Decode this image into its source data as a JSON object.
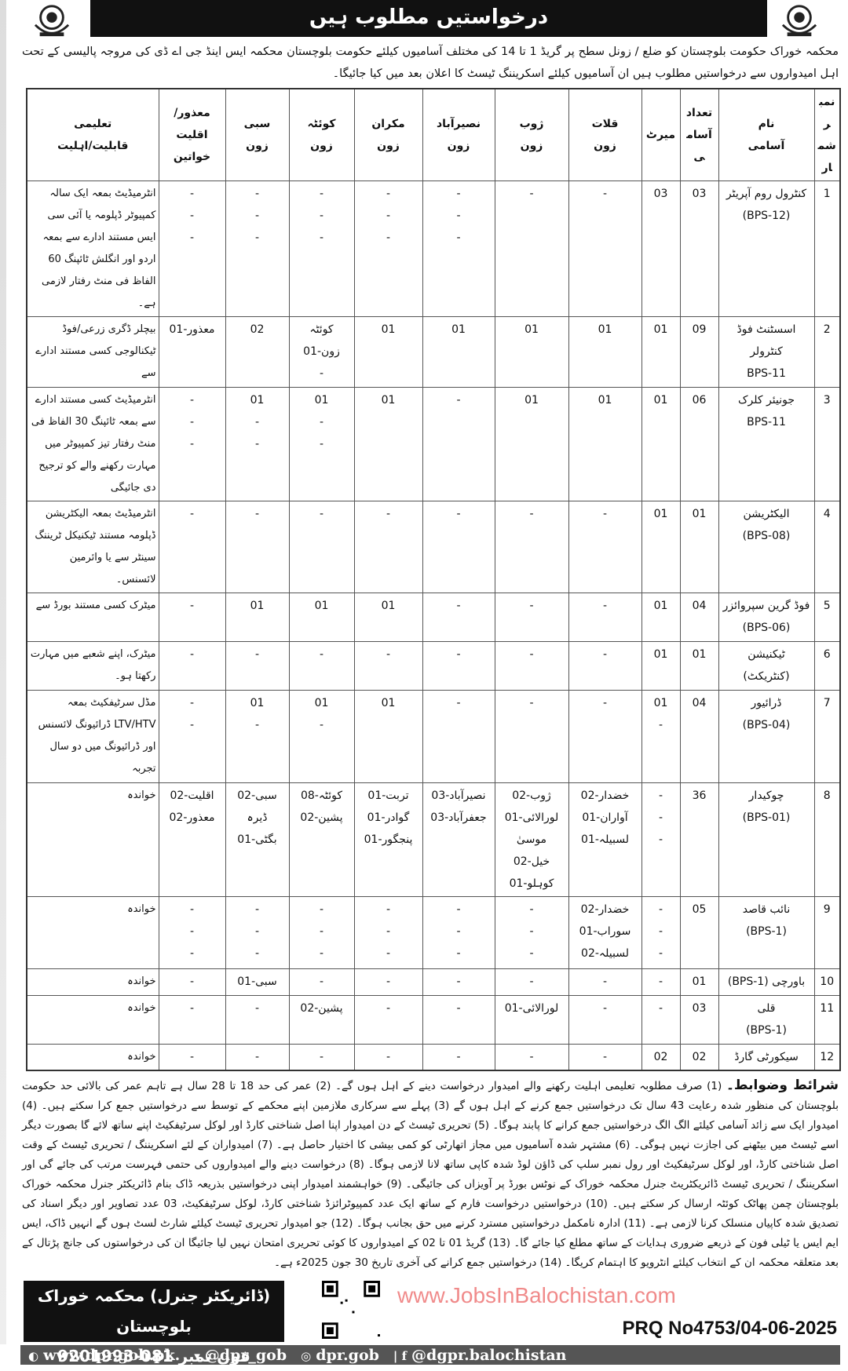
{
  "header": {
    "title": "درخواستیں مطلوب ہیں"
  },
  "intro": "محکمہ خوراک حکومت بلوچستان کو ضلع / زونل سطح پر گریڈ 1 تا 14 کی مختلف آسامیوں کیلئے حکومت بلوچستان محکمہ ایس اینڈ جی اے ڈی کی مروجہ پالیسی کے تحت اہل امیدواروں سے درخواستیں مطلوب ہیں ان آسامیوں کیلئے اسکریننگ ٹیسٹ کا اعلان بعد میں کیا جائیگا۔",
  "table": {
    "columns": [
      "نمبر\nشمار",
      "نام\nآسامی",
      "تعداد\nآسامی",
      "میرٹ",
      "قلات\nزون",
      "ژوب\nزون",
      "نصیرآباد\nزون",
      "مکران\nزون",
      "کوئٹہ\nزون",
      "سبی\nزون",
      "معذور/اقلیت\nخواتین",
      "تعلیمی\nقابلیت/اہلیت"
    ],
    "rows": [
      [
        "1",
        "کنٹرول روم آپریٹر\n(BPS-12)",
        "03",
        "03",
        "-",
        "-",
        "-\n-\n-",
        "-\n-\n-",
        "-\n-\n-",
        "-\n-\n-",
        "-\n-\n-",
        "انٹرمیڈیٹ بمعہ ایک سالہ کمپیوٹر ڈپلومہ یا آئی سی ایس مستند ادارے سے بمعہ اردو اور انگلش ٹائپنگ 60 الفاظ فی منٹ رفتار لازمی ہے۔"
      ],
      [
        "2",
        "اسسٹنٹ فوڈ کنٹرولر\nBPS-11",
        "09",
        "01",
        "01",
        "01",
        "01",
        "01",
        "کوئٹہ\nزون-01\n-",
        "02",
        "معذور-01",
        "بیچلر ڈگری زرعی/فوڈ ٹیکنالوجی کسی مستند ادارے سے"
      ],
      [
        "3",
        "جونیئر کلرک\nBPS-11",
        "06",
        "01",
        "01",
        "01",
        "-",
        "01",
        "01\n-\n-",
        "01\n-\n-",
        "-\n-\n-",
        "انٹرمیڈیٹ کسی مستند ادارے سے بمعہ ٹائپنگ 30 الفاظ فی منٹ رفتار تیز کمپیوٹر میں مہارت رکھنے والے کو ترجیح دی جائیگی"
      ],
      [
        "4",
        "الیکٹریشن\n(BPS-08)",
        "01",
        "01",
        "-",
        "-",
        "-",
        "-",
        "-",
        "-",
        "-",
        "انٹرمیڈیٹ بمعہ الیکٹریشن ڈپلومہ مستند ٹیکنیکل ٹریننگ سینٹر سے یا وائرمین لائسنس۔"
      ],
      [
        "5",
        "فوڈ گرین سپروائزر\n(BPS-06)",
        "04",
        "01",
        "-",
        "-",
        "-",
        "01",
        "01",
        "01",
        "-",
        "میٹرک کسی مستند بورڈ سے"
      ],
      [
        "6",
        "ٹیکنیشن\n(کنٹریکٹ)",
        "01",
        "01",
        "-",
        "-",
        "-",
        "-",
        "-",
        "-",
        "-",
        "میٹرک، اپنے شعبے میں مہارت رکھتا ہو۔"
      ],
      [
        "7",
        "ڈرائیور\n(BPS-04)",
        "04",
        "01\n-",
        "-",
        "-",
        "-",
        "01",
        "01\n-",
        "01\n-",
        "-\n-",
        "مڈل سرٹیفکیٹ بمعہ LTV/HTV ڈرائیونگ لائسنس اور ڈرائیونگ میں دو سال تجربہ"
      ],
      [
        "8",
        "چوکیدار\n(BPS-01)",
        "36",
        "-\n-\n-",
        "خضدار-02\nآواران-01\nلسبیلہ-01",
        "ژوب-02\nلورالائی-01\nموسیٰ خیل-02\nکوہلو-01",
        "نصیرآباد-03\nجعفرآباد-03",
        "تربت-01\nگوادر-01\nپنجگور-01",
        "کوئٹہ-08\nپشین-02",
        "سبی-02\nڈیرہ بگٹی-01",
        "اقلیت-02\nمعذور-02",
        "خواندہ"
      ],
      [
        "9",
        "نائب قاصد\n(BPS-1)",
        "05",
        "-\n-\n-",
        "خضدار-02\nسوراب-01\nلسبیلہ-02",
        "-\n-\n-",
        "-\n-\n-",
        "-\n-\n-",
        "-\n-\n-",
        "-\n-\n-",
        "-\n-\n-",
        "خواندہ"
      ],
      [
        "10",
        "باورچی (BPS-1)",
        "01",
        "-",
        "-",
        "-",
        "-",
        "-",
        "-",
        "سبی-01",
        "-",
        "خواندہ"
      ],
      [
        "11",
        "قلی\n(BPS-1)",
        "03",
        "-",
        "-",
        "لورالائی-01",
        "-",
        "-",
        "پشین-02",
        "-",
        "-",
        "خواندہ"
      ],
      [
        "12",
        "سیکورٹی گارڈ",
        "02",
        "02",
        "-",
        "-",
        "-",
        "-",
        "-",
        "-",
        "-",
        "خواندہ"
      ]
    ]
  },
  "terms": {
    "heading": "شرائط وضوابط۔",
    "text": "(1) صرف مطلوبہ تعلیمی اہلیت رکھنے والے امیدوار درخواست دینے کے اہل ہوں گے۔ (2) عمر کی حد 18 تا 28 سال ہے تاہم عمر کی بالائی حد حکومت بلوچستان کی منظور شدہ رعایت 43 سال تک درخواستیں جمع کرنے کے اہل ہوں گے (3) پہلے سے سرکاری ملازمین اپنے محکمے کے توسط سے درخواستیں جمع کرا سکتے ہیں۔ (4) امیدوار ایک سے زائد آسامی کیلئے الگ الگ درخواستیں جمع کرانے کا پابند ہوگا۔ (5) تحریری ٹیسٹ کے دن امیدوار اپنا اصل شناختی کارڈ اور لوکل سرٹیفکیٹ اپنے ساتھ لائے گا بصورت دیگر اسے ٹیسٹ میں بیٹھنے کی اجازت نہیں ہوگی۔ (6) مشتہر شدہ آسامیوں میں مجاز اتھارٹی کو کمی بیشی کا اختیار حاصل ہے۔ (7) امیدواران کے لئے اسکریننگ / تحریری ٹیسٹ کے وقت اصل شناختی کارڈ، اور لوکل سرٹیفکیٹ اور رول نمبر سلپ کی ڈاؤن لوڈ شدہ کاپی ساتھ لانا لازمی ہوگا۔ (8) درخواست دینے والے امیدواروں کی حتمی فہرست مرتب کی جائے گی اور اسکریننگ / تحریری ٹیسٹ ڈائریکٹریٹ جنرل محکمہ خوراک کے نوٹس بورڈ پر آویزاں کی جائیگی۔ (9) خواہشمند امیدوار اپنی درخواستیں بذریعہ ڈاک بنام ڈائریکٹر جنرل محکمہ خوراک بلوچستان چمن پھاٹک کوئٹہ ارسال کر سکتے ہیں۔ (10) درخواستیں درخواست فارم کے ساتھ ایک عدد کمپیوٹرائزڈ شناختی کارڈ، لوکل سرٹیفکیٹ، 03 عدد تصاویر اور دیگر اسناد کی تصدیق شدہ کاپیاں منسلک کرنا لازمی ہے۔ (11) ادارہ نامکمل درخواستیں مسترد کرنے میں حق بجانب ہوگا۔ (12) جو امیدوار تحریری ٹیسٹ کیلئے شارٹ لسٹ ہوں گے انہیں ڈاک، ایس ایم ایس یا ٹیلی فون کے ذریعے ضروری ہدایات کے ساتھ مطلع کیا جائے گا۔ (13) گریڈ 01 تا 02 کے امیدواروں کا کوئی تحریری امتحان نہیں لیا جائیگا ان کی درخواستوں کی جانچ پڑتال کے بعد متعلقہ محکمہ ان کے انتخاب کیلئے انٹرویو کا اہتمام کریگا۔ (14) درخواستیں جمع کرانے کی آخری تاریخ 30 جون 2025ء ہے۔"
  },
  "footer": {
    "office": "(ڈائریکٹر جنرل) محکمہ خوراک بلوچستان",
    "phone": "فون نمبر 081-9201993",
    "prq": "PRQ No4753/04-06-2025",
    "social": [
      {
        "icon": "globe-icon",
        "text": "www.dpr.gob.pk."
      },
      {
        "icon": "twitter-icon",
        "text": "@dpr_gob"
      },
      {
        "icon": "instagram-icon",
        "text": "dpr.gob"
      },
      {
        "icon": "facebook-icon",
        "text": "@dgpr.balochistan"
      }
    ]
  },
  "watermark": "www.JobsInBalochistan.com",
  "colors": {
    "watermark": "#e63c3c",
    "bar": "#111111",
    "social_bar": "#555555"
  }
}
